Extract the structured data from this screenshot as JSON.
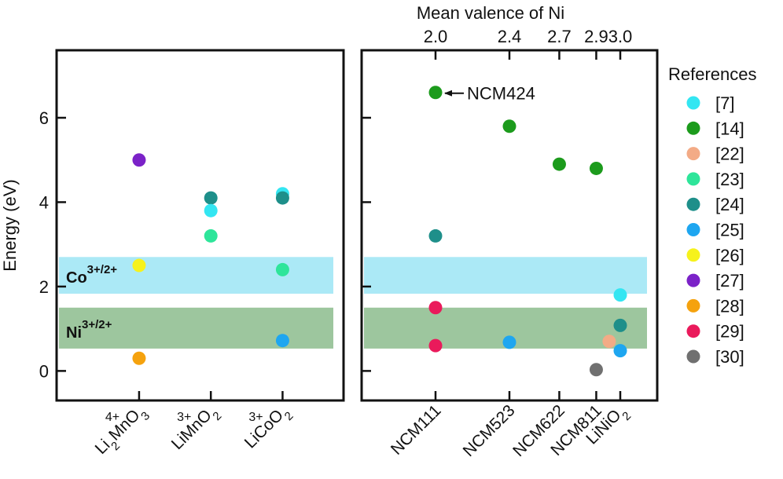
{
  "chart_data": {
    "type": "scatter",
    "ylabel": "Energy (eV)",
    "ylim": [
      -0.7,
      7.6
    ],
    "yticks": [
      0,
      2,
      4,
      6
    ],
    "legend": {
      "title": "References",
      "entries": [
        {
          "id": "7",
          "label": "[7]",
          "color": "#33e6f2"
        },
        {
          "id": "14",
          "label": "[14]",
          "color": "#1c9b1c"
        },
        {
          "id": "22",
          "label": "[22]",
          "color": "#f3ab86"
        },
        {
          "id": "23",
          "label": "[23]",
          "color": "#2ee59a"
        },
        {
          "id": "24",
          "label": "[24]",
          "color": "#1e8f8a"
        },
        {
          "id": "25",
          "label": "[25]",
          "color": "#1ea6f0"
        },
        {
          "id": "26",
          "label": "[26]",
          "color": "#f6f21c"
        },
        {
          "id": "27",
          "label": "[27]",
          "color": "#7b22c8"
        },
        {
          "id": "28",
          "label": "[28]",
          "color": "#f5a20e"
        },
        {
          "id": "29",
          "label": "[29]",
          "color": "#ea1a5b"
        },
        {
          "id": "30",
          "label": "[30]",
          "color": "#707070"
        }
      ]
    },
    "bands": [
      {
        "name": "co",
        "ion": "Co",
        "charge": "3+/2+",
        "from": 1.83,
        "to": 2.7,
        "color": "#abe9f6",
        "label_color": "#1b6fa2"
      },
      {
        "name": "ni",
        "ion": "Ni",
        "charge": "3+/2+",
        "from": 0.53,
        "to": 1.5,
        "color": "#9dc69e",
        "label_color": "#1b6b6b"
      }
    ],
    "panels": [
      {
        "name": "left",
        "xlim": [
          0,
          4
        ],
        "categories": [
          {
            "id": "li2mno3",
            "x": 1.15,
            "charge": "4+",
            "formula": [
              [
                "Li",
                ""
              ],
              [
                "2",
                "sub"
              ],
              [
                "MnO",
                ""
              ],
              [
                "3",
                "sub"
              ]
            ]
          },
          {
            "id": "limno2",
            "x": 2.15,
            "charge": "3+",
            "formula": [
              [
                "LiMnO",
                ""
              ],
              [
                "2",
                "sub"
              ]
            ]
          },
          {
            "id": "licoo2",
            "x": 3.15,
            "charge": "3+",
            "formula": [
              [
                "LiCoO",
                ""
              ],
              [
                "2",
                "sub"
              ]
            ]
          }
        ],
        "points": [
          {
            "x": 1.15,
            "y": 5.0,
            "ref": "27"
          },
          {
            "x": 1.15,
            "y": 2.5,
            "ref": "26"
          },
          {
            "x": 1.15,
            "y": 0.3,
            "ref": "28"
          },
          {
            "x": 2.15,
            "y": 4.1,
            "ref": "24"
          },
          {
            "x": 2.15,
            "y": 3.8,
            "ref": "7"
          },
          {
            "x": 2.15,
            "y": 3.2,
            "ref": "23"
          },
          {
            "x": 3.15,
            "y": 4.2,
            "ref": "7"
          },
          {
            "x": 3.15,
            "y": 4.1,
            "ref": "24"
          },
          {
            "x": 3.15,
            "y": 2.4,
            "ref": "23"
          },
          {
            "x": 3.15,
            "y": 0.72,
            "ref": "25"
          }
        ]
      },
      {
        "name": "right",
        "xlim": [
          1.6,
          3.2
        ],
        "top_axis_title": "Mean valence of Ni",
        "top_ticks": [
          {
            "x": 2.0,
            "label": "2.0"
          },
          {
            "x": 2.4,
            "label": "2.4"
          },
          {
            "x": 2.67,
            "label": "2.7"
          },
          {
            "x": 2.87,
            "label": "2.9"
          },
          {
            "x": 3.0,
            "label": "3.0"
          }
        ],
        "categories": [
          {
            "id": "ncm111",
            "x": 2.0,
            "formula": [
              [
                "NCM111",
                ""
              ]
            ]
          },
          {
            "id": "ncm523",
            "x": 2.4,
            "formula": [
              [
                "NCM523",
                ""
              ]
            ]
          },
          {
            "id": "ncm622",
            "x": 2.67,
            "formula": [
              [
                "NCM622",
                ""
              ]
            ]
          },
          {
            "id": "ncm811",
            "x": 2.87,
            "formula": [
              [
                "NCM811",
                ""
              ]
            ]
          },
          {
            "id": "linio2",
            "x": 3.0,
            "formula": [
              [
                "LiNiO",
                ""
              ],
              [
                "2",
                "sub"
              ]
            ]
          }
        ],
        "points": [
          {
            "x": 2.0,
            "y": 6.6,
            "ref": "14"
          },
          {
            "x": 2.0,
            "y": 3.2,
            "ref": "24"
          },
          {
            "x": 2.0,
            "y": 1.5,
            "ref": "29"
          },
          {
            "x": 2.0,
            "y": 0.6,
            "ref": "29"
          },
          {
            "x": 2.4,
            "y": 5.8,
            "ref": "14"
          },
          {
            "x": 2.4,
            "y": 0.68,
            "ref": "25"
          },
          {
            "x": 2.67,
            "y": 4.9,
            "ref": "14"
          },
          {
            "x": 2.87,
            "y": 4.8,
            "ref": "14"
          },
          {
            "x": 2.87,
            "y": 0.03,
            "ref": "30"
          },
          {
            "x": 2.94,
            "y": 0.7,
            "ref": "22"
          },
          {
            "x": 3.0,
            "y": 1.8,
            "ref": "7"
          },
          {
            "x": 3.0,
            "y": 1.08,
            "ref": "24"
          },
          {
            "x": 3.0,
            "y": 0.48,
            "ref": "25"
          }
        ],
        "annotation": {
          "text": "NCM424",
          "x": 2.0,
          "y": 6.6
        }
      }
    ]
  }
}
